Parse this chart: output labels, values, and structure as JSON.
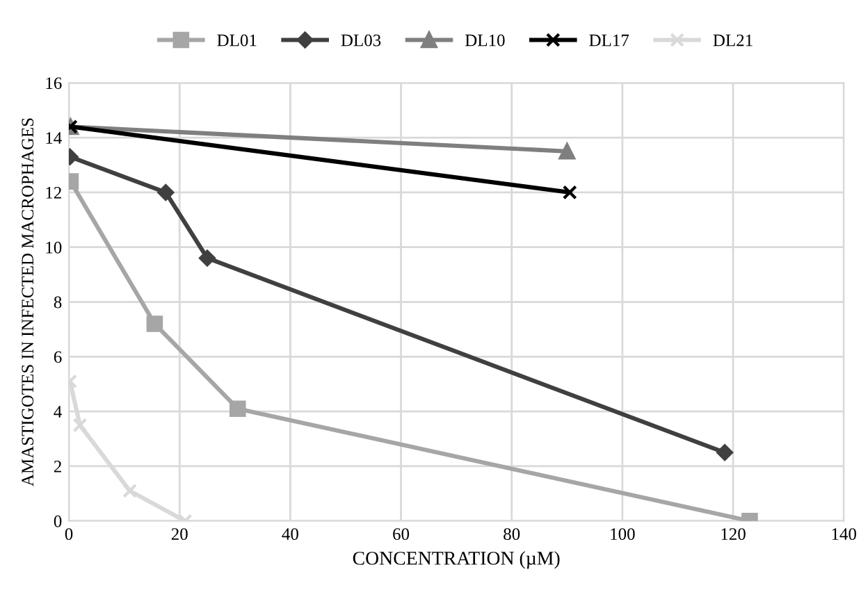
{
  "chart_data": {
    "type": "line",
    "xlabel": "CONCENTRATION (µM)",
    "ylabel": "AMASTIGOTES IN INFECTED MACROPHAGES",
    "xlim": [
      0,
      140
    ],
    "xticks": [
      0,
      20,
      40,
      60,
      80,
      100,
      120,
      140
    ],
    "ylim": [
      0,
      16
    ],
    "yticks": [
      0,
      2,
      4,
      6,
      8,
      10,
      12,
      14,
      16
    ],
    "grid": true,
    "legend": "top",
    "series": [
      {
        "name": "DL01",
        "color": "#a6a6a6",
        "marker": "square",
        "x": [
          0.3,
          15.5,
          30.5,
          123
        ],
        "values": [
          12.4,
          7.2,
          4.1,
          0
        ]
      },
      {
        "name": "DL03",
        "color": "#404040",
        "marker": "diamond",
        "x": [
          0.2,
          17.5,
          25,
          118.5
        ],
        "values": [
          13.3,
          12.0,
          9.6,
          2.5
        ]
      },
      {
        "name": "DL10",
        "color": "#7f7f7f",
        "marker": "triangle",
        "x": [
          0.3,
          90
        ],
        "values": [
          14.4,
          13.5
        ]
      },
      {
        "name": "DL17",
        "color": "#000000",
        "marker": "cross",
        "x": [
          0.3,
          90.5
        ],
        "values": [
          14.4,
          12.0
        ]
      },
      {
        "name": "DL21",
        "color": "#d9d9d9",
        "marker": "cross",
        "x": [
          0.2,
          2,
          11,
          21
        ],
        "values": [
          5.1,
          3.5,
          1.1,
          0
        ]
      }
    ]
  }
}
